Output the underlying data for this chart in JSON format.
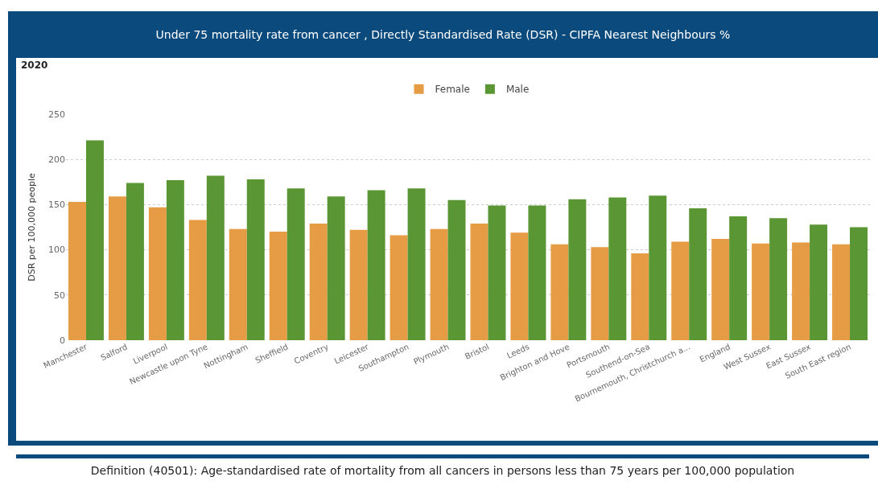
{
  "chart_data": {
    "type": "bar",
    "title": "Under 75 mortality rate from cancer , Directly Standardised Rate (DSR) - CIPFA Nearest Neighbours %",
    "subtitle": "2020",
    "ylabel": "DSR per 100,000 people",
    "categories": [
      "Manchester",
      "Salford",
      "Liverpool",
      "Newcastle upon Tyne",
      "Nottingham",
      "Sheffield",
      "Coventry",
      "Leicester",
      "Southampton",
      "Plymouth",
      "Bristol",
      "Leeds",
      "Brighton and Hove",
      "Portsmouth",
      "Southend-on-Sea",
      "Bournemouth, Christchurch a...",
      "England",
      "West Sussex",
      "East Sussex",
      "South East region"
    ],
    "series": [
      {
        "name": "Female",
        "color": "#e69c45",
        "values": [
          153,
          159,
          147,
          133,
          123,
          120,
          129,
          122,
          116,
          123,
          129,
          119,
          106,
          103,
          96,
          109,
          112,
          107,
          108,
          106
        ]
      },
      {
        "name": "Male",
        "color": "#5a9734",
        "values": [
          221,
          174,
          177,
          182,
          178,
          168,
          159,
          166,
          168,
          155,
          149,
          149,
          156,
          158,
          160,
          146,
          137,
          135,
          128,
          125
        ]
      }
    ],
    "ylim": [
      0,
      250
    ],
    "yticks": [
      0,
      50,
      100,
      150,
      200,
      250
    ],
    "grid": "y",
    "legend": "top",
    "annotations": [
      "Definition (40501):  Age-standardised rate of mortality from all cancers in persons less than 75 years per 100,000 population"
    ]
  }
}
